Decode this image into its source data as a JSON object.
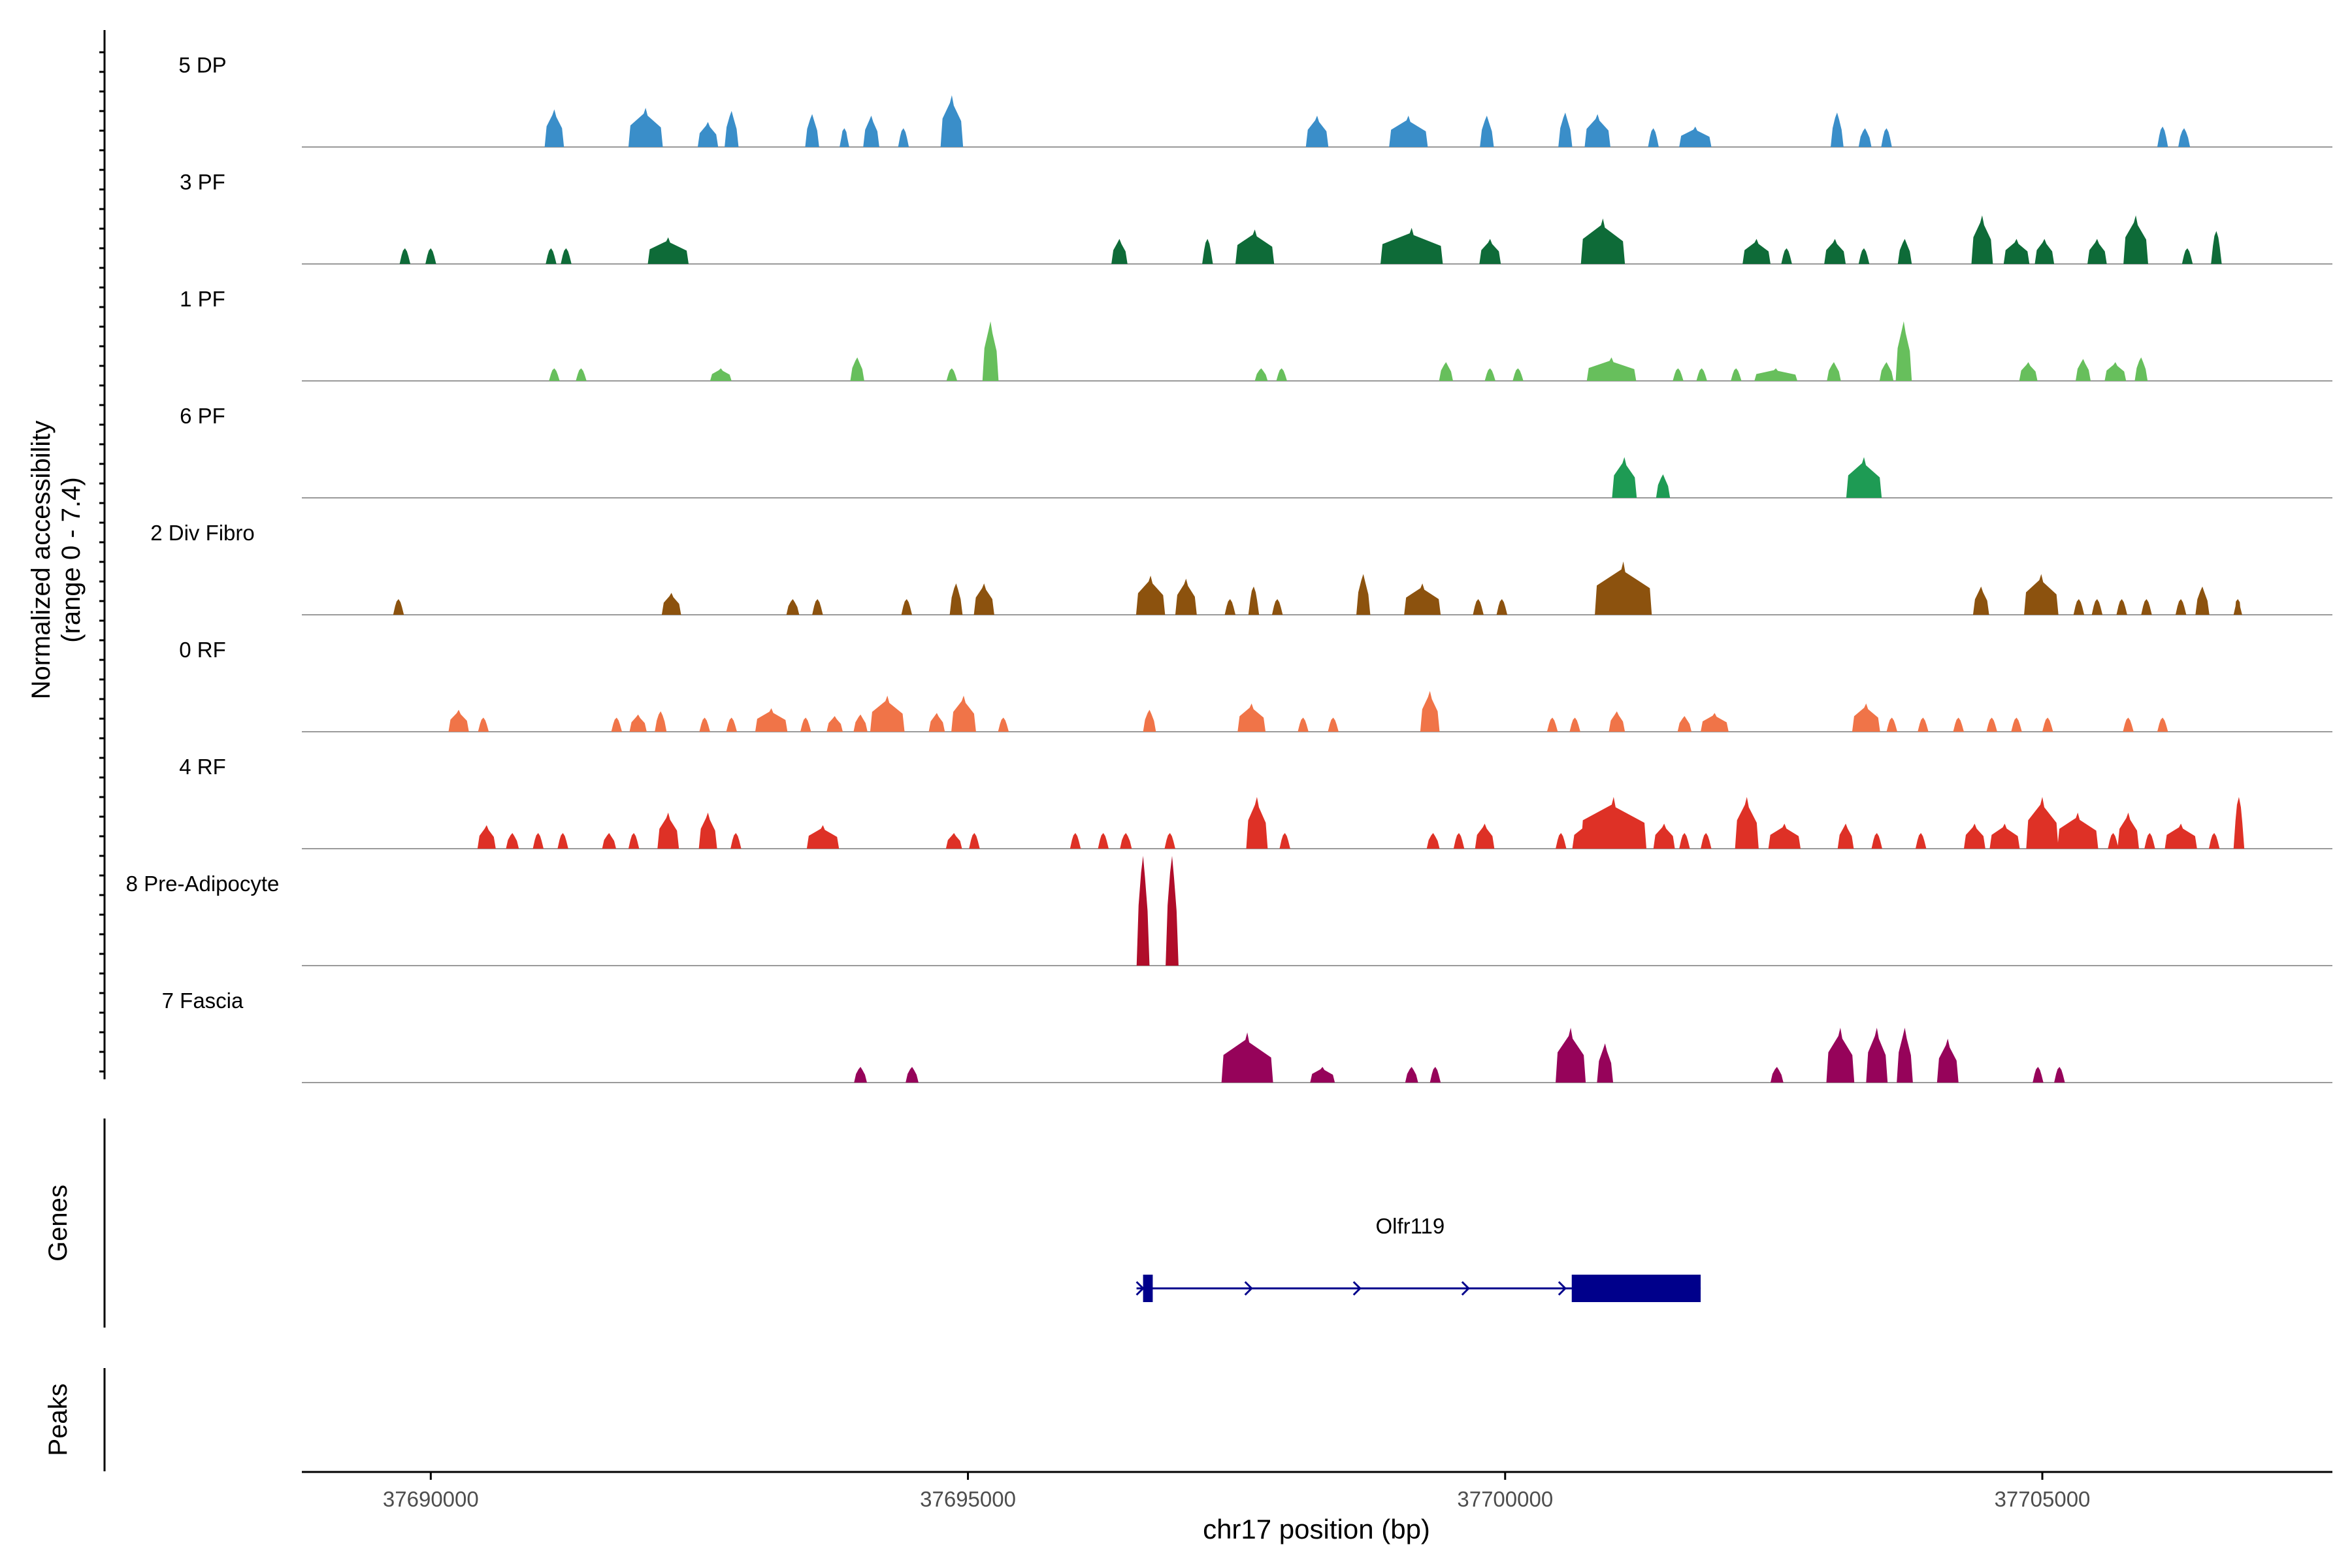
{
  "chart_data": {
    "type": "area",
    "title": "",
    "xlabel": "chr17 position (bp)",
    "ylabel_line1": "Normalized accessibility",
    "ylabel_line2": "(range 0 - 7.4)",
    "genes_label": "Genes",
    "peaks_label": "Peaks",
    "xlim": [
      37688800,
      37707700
    ],
    "ylim": [
      0,
      7.4
    ],
    "xticks": [
      37690000,
      37695000,
      37700000,
      37705000
    ],
    "xtick_labels": [
      "37690000",
      "37695000",
      "37700000",
      "37705000"
    ],
    "tracks": [
      {
        "name": "5 DP",
        "color": "#3a8ec9",
        "peaks": [
          [
            37691150,
            180,
            2.4
          ],
          [
            37692000,
            320,
            2.5
          ],
          [
            37692580,
            190,
            1.6
          ],
          [
            37692800,
            130,
            2.3
          ],
          [
            37693550,
            130,
            2.1
          ],
          [
            37693850,
            90,
            1.2
          ],
          [
            37694100,
            150,
            2.0
          ],
          [
            37694400,
            100,
            1.2
          ],
          [
            37694850,
            210,
            3.3
          ],
          [
            37698250,
            210,
            2.0
          ],
          [
            37699100,
            360,
            2.0
          ],
          [
            37699830,
            130,
            2.0
          ],
          [
            37700560,
            130,
            2.2
          ],
          [
            37700860,
            240,
            2.1
          ],
          [
            37701380,
            100,
            1.2
          ],
          [
            37701770,
            300,
            1.3
          ],
          [
            37703090,
            120,
            2.2
          ],
          [
            37703350,
            120,
            1.2
          ],
          [
            37703550,
            100,
            1.2
          ],
          [
            37706120,
            100,
            1.3
          ],
          [
            37706320,
            110,
            1.2
          ]
        ]
      },
      {
        "name": "3 PF",
        "color": "#0e6b38",
        "peaks": [
          [
            37689760,
            100,
            1.0
          ],
          [
            37690000,
            100,
            1.0
          ],
          [
            37691120,
            100,
            1.0
          ],
          [
            37691260,
            100,
            1.0
          ],
          [
            37692210,
            380,
            1.7
          ],
          [
            37696410,
            150,
            1.6
          ],
          [
            37697230,
            100,
            1.6
          ],
          [
            37697670,
            360,
            2.2
          ],
          [
            37699130,
            580,
            2.3
          ],
          [
            37699860,
            200,
            1.6
          ],
          [
            37700910,
            410,
            2.9
          ],
          [
            37702340,
            260,
            1.6
          ],
          [
            37702620,
            100,
            1.0
          ],
          [
            37703070,
            200,
            1.6
          ],
          [
            37703340,
            100,
            1.0
          ],
          [
            37703720,
            130,
            1.6
          ],
          [
            37704440,
            200,
            3.1
          ],
          [
            37704760,
            240,
            1.6
          ],
          [
            37705020,
            180,
            1.6
          ],
          [
            37705510,
            180,
            1.6
          ],
          [
            37705870,
            230,
            3.1
          ],
          [
            37706350,
            100,
            1.0
          ],
          [
            37706620,
            100,
            2.1
          ]
        ]
      },
      {
        "name": "1 PF",
        "color": "#67bf5c",
        "peaks": [
          [
            37691150,
            100,
            0.8
          ],
          [
            37691400,
            100,
            0.8
          ],
          [
            37692700,
            200,
            0.8
          ],
          [
            37693970,
            130,
            1.5
          ],
          [
            37694850,
            100,
            0.8
          ],
          [
            37695210,
            150,
            3.8
          ],
          [
            37697730,
            120,
            0.8
          ],
          [
            37697920,
            100,
            0.8
          ],
          [
            37699450,
            130,
            1.2
          ],
          [
            37699860,
            100,
            0.8
          ],
          [
            37700120,
            100,
            0.8
          ],
          [
            37700990,
            460,
            1.5
          ],
          [
            37701610,
            100,
            0.8
          ],
          [
            37701830,
            100,
            0.8
          ],
          [
            37702150,
            100,
            0.8
          ],
          [
            37702520,
            400,
            0.8
          ],
          [
            37703060,
            130,
            1.2
          ],
          [
            37703550,
            130,
            1.2
          ],
          [
            37703710,
            150,
            3.8
          ],
          [
            37704870,
            170,
            1.2
          ],
          [
            37705380,
            140,
            1.4
          ],
          [
            37705680,
            200,
            1.2
          ],
          [
            37705920,
            120,
            1.5
          ]
        ]
      },
      {
        "name": "6 PF",
        "color": "#1e9b54",
        "peaks": [
          [
            37701110,
            230,
            2.6
          ],
          [
            37701470,
            130,
            1.5
          ],
          [
            37703340,
            330,
            2.6
          ]
        ]
      },
      {
        "name": "2 Div Fibro",
        "color": "#8c520e",
        "peaks": [
          [
            37689700,
            100,
            1.0
          ],
          [
            37692240,
            180,
            1.4
          ],
          [
            37693370,
            120,
            1.0
          ],
          [
            37693600,
            100,
            1.0
          ],
          [
            37694430,
            100,
            1.0
          ],
          [
            37694890,
            120,
            2.0
          ],
          [
            37695150,
            190,
            2.0
          ],
          [
            37696700,
            270,
            2.5
          ],
          [
            37697030,
            200,
            2.3
          ],
          [
            37697440,
            100,
            1.0
          ],
          [
            37697660,
            100,
            1.8
          ],
          [
            37697880,
            100,
            1.0
          ],
          [
            37698680,
            130,
            2.6
          ],
          [
            37699230,
            340,
            2.0
          ],
          [
            37699750,
            100,
            1.0
          ],
          [
            37699970,
            100,
            1.0
          ],
          [
            37701100,
            530,
            3.4
          ],
          [
            37704430,
            150,
            1.8
          ],
          [
            37704990,
            320,
            2.6
          ],
          [
            37705340,
            100,
            1.0
          ],
          [
            37705510,
            100,
            1.0
          ],
          [
            37705740,
            100,
            1.0
          ],
          [
            37705970,
            100,
            1.0
          ],
          [
            37706290,
            100,
            1.0
          ],
          [
            37706490,
            130,
            1.8
          ],
          [
            37706820,
            80,
            1.0
          ]
        ]
      },
      {
        "name": "0 RF",
        "color": "#f07448",
        "peaks": [
          [
            37690260,
            190,
            1.4
          ],
          [
            37690490,
            100,
            0.9
          ],
          [
            37691730,
            100,
            0.9
          ],
          [
            37691930,
            160,
            1.1
          ],
          [
            37692140,
            110,
            1.3
          ],
          [
            37692550,
            100,
            0.9
          ],
          [
            37692800,
            100,
            0.9
          ],
          [
            37693170,
            300,
            1.5
          ],
          [
            37693490,
            100,
            0.9
          ],
          [
            37693760,
            150,
            1.0
          ],
          [
            37694000,
            130,
            1.1
          ],
          [
            37694250,
            320,
            2.3
          ],
          [
            37694710,
            150,
            1.2
          ],
          [
            37694960,
            230,
            2.3
          ],
          [
            37695330,
            100,
            0.9
          ],
          [
            37696690,
            120,
            1.4
          ],
          [
            37697640,
            260,
            1.8
          ],
          [
            37698120,
            100,
            0.9
          ],
          [
            37698400,
            100,
            0.9
          ],
          [
            37699300,
            180,
            2.6
          ],
          [
            37700440,
            100,
            0.9
          ],
          [
            37700650,
            100,
            0.9
          ],
          [
            37701040,
            150,
            1.3
          ],
          [
            37701670,
            130,
            1.0
          ],
          [
            37701950,
            260,
            1.2
          ],
          [
            37703360,
            260,
            1.8
          ],
          [
            37703600,
            100,
            0.9
          ],
          [
            37703890,
            100,
            0.9
          ],
          [
            37704220,
            100,
            0.9
          ],
          [
            37704530,
            100,
            0.9
          ],
          [
            37704760,
            100,
            0.9
          ],
          [
            37705050,
            100,
            0.9
          ],
          [
            37705800,
            100,
            0.9
          ],
          [
            37706120,
            100,
            0.9
          ]
        ]
      },
      {
        "name": "4 RF",
        "color": "#de3126",
        "peaks": [
          [
            37690520,
            170,
            1.5
          ],
          [
            37690760,
            120,
            1.0
          ],
          [
            37691000,
            100,
            1.0
          ],
          [
            37691230,
            100,
            1.0
          ],
          [
            37691660,
            130,
            1.0
          ],
          [
            37691890,
            100,
            1.0
          ],
          [
            37692210,
            200,
            2.3
          ],
          [
            37692580,
            170,
            2.3
          ],
          [
            37692840,
            100,
            1.0
          ],
          [
            37693650,
            300,
            1.5
          ],
          [
            37694870,
            150,
            1.0
          ],
          [
            37695060,
            100,
            1.0
          ],
          [
            37696000,
            100,
            1.0
          ],
          [
            37696260,
            100,
            1.0
          ],
          [
            37696470,
            110,
            1.0
          ],
          [
            37696880,
            100,
            1.0
          ],
          [
            37697690,
            200,
            3.3
          ],
          [
            37697950,
            100,
            1.0
          ],
          [
            37699330,
            120,
            1.0
          ],
          [
            37699570,
            100,
            1.0
          ],
          [
            37699810,
            180,
            1.6
          ],
          [
            37700520,
            100,
            1.0
          ],
          [
            37700750,
            250,
            1.6
          ],
          [
            37701010,
            610,
            3.3
          ],
          [
            37701480,
            200,
            1.6
          ],
          [
            37701670,
            100,
            1.0
          ],
          [
            37701870,
            100,
            1.0
          ],
          [
            37702250,
            220,
            3.3
          ],
          [
            37702600,
            300,
            1.6
          ],
          [
            37703170,
            150,
            1.6
          ],
          [
            37703460,
            100,
            1.0
          ],
          [
            37703870,
            100,
            1.0
          ],
          [
            37704370,
            200,
            1.6
          ],
          [
            37704650,
            280,
            1.6
          ],
          [
            37705000,
            300,
            3.3
          ],
          [
            37705330,
            380,
            2.3
          ],
          [
            37705660,
            100,
            1.0
          ],
          [
            37705800,
            200,
            2.3
          ],
          [
            37706000,
            100,
            1.0
          ],
          [
            37706290,
            300,
            1.6
          ],
          [
            37706600,
            100,
            1.0
          ],
          [
            37706830,
            100,
            3.3
          ]
        ]
      },
      {
        "name": "8 Pre-Adipocyte",
        "color": "#b00d2a",
        "peaks": [
          [
            37696630,
            120,
            7.0
          ],
          [
            37696900,
            120,
            7.0
          ]
        ]
      },
      {
        "name": "7 Fascia",
        "color": "#96035a",
        "peaks": [
          [
            37694000,
            120,
            1.0
          ],
          [
            37694480,
            120,
            1.0
          ],
          [
            37697600,
            480,
            3.2
          ],
          [
            37698300,
            230,
            1.0
          ],
          [
            37699130,
            120,
            1.0
          ],
          [
            37699350,
            100,
            1.0
          ],
          [
            37700610,
            280,
            3.5
          ],
          [
            37700930,
            150,
            2.5
          ],
          [
            37702530,
            120,
            1.0
          ],
          [
            37703120,
            260,
            3.5
          ],
          [
            37703460,
            200,
            3.5
          ],
          [
            37703720,
            150,
            3.5
          ],
          [
            37704120,
            200,
            2.8
          ],
          [
            37704960,
            100,
            1.0
          ],
          [
            37705160,
            100,
            1.0
          ]
        ]
      }
    ],
    "genes": [
      {
        "name": "Olfr119",
        "color": "#00008b",
        "start": 37696630,
        "end": 37701820,
        "exons": [
          [
            37696630,
            37696720
          ],
          [
            37700620,
            37701820
          ]
        ],
        "strand_arrows": [
          37696630,
          37697640,
          37698650,
          37699660,
          37700560
        ]
      }
    ]
  }
}
